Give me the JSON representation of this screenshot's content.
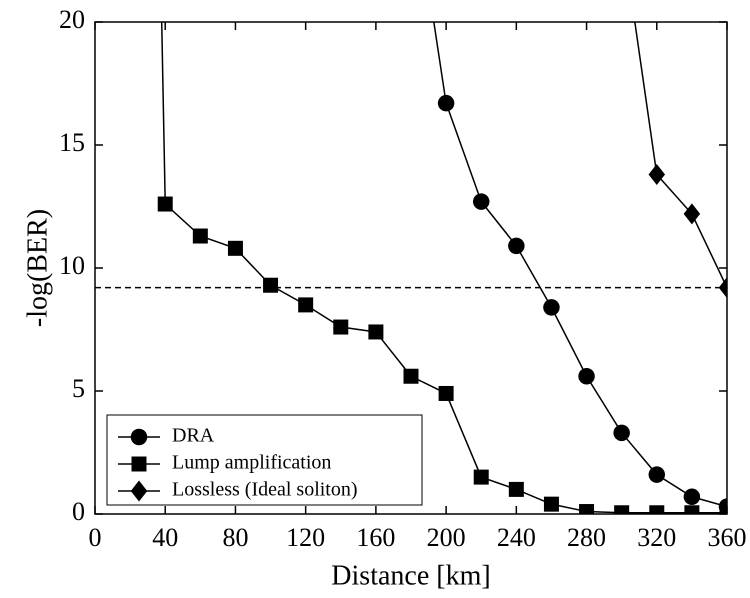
{
  "chart_data": {
    "type": "line",
    "xlabel": "Distance [km]",
    "ylabel": "-log(BER)",
    "xlim": [
      0,
      360
    ],
    "ylim": [
      0,
      20
    ],
    "xticks": [
      0,
      40,
      80,
      120,
      160,
      200,
      240,
      280,
      320,
      360
    ],
    "yticks": [
      0,
      5,
      10,
      15,
      20
    ],
    "threshold": 9.2,
    "legend": "lower left",
    "series": [
      {
        "name": "DRA",
        "color": "#000000",
        "marker": "circle",
        "x": [
          193,
          200,
          220,
          240,
          260,
          280,
          300,
          320,
          340,
          360
        ],
        "values": [
          20,
          16.7,
          12.7,
          10.9,
          8.4,
          5.6,
          3.3,
          1.6,
          0.7,
          0.3
        ]
      },
      {
        "name": "Lump amplification",
        "color": "#000000",
        "marker": "square",
        "x": [
          38,
          40,
          60,
          80,
          100,
          120,
          140,
          160,
          180,
          200,
          220,
          240,
          260,
          280,
          300,
          320,
          340,
          360
        ],
        "values": [
          20,
          12.6,
          11.3,
          10.8,
          9.3,
          8.5,
          7.6,
          7.4,
          5.6,
          4.9,
          1.5,
          1.0,
          0.4,
          0.1,
          0.05,
          0.05,
          0.05,
          0.05
        ]
      },
      {
        "name": "Lossless (Ideal soliton)",
        "color": "#000000",
        "marker": "diamond",
        "x": [
          307.5,
          320,
          340,
          360
        ],
        "values": [
          20,
          13.8,
          12.2,
          9.2
        ]
      }
    ]
  }
}
